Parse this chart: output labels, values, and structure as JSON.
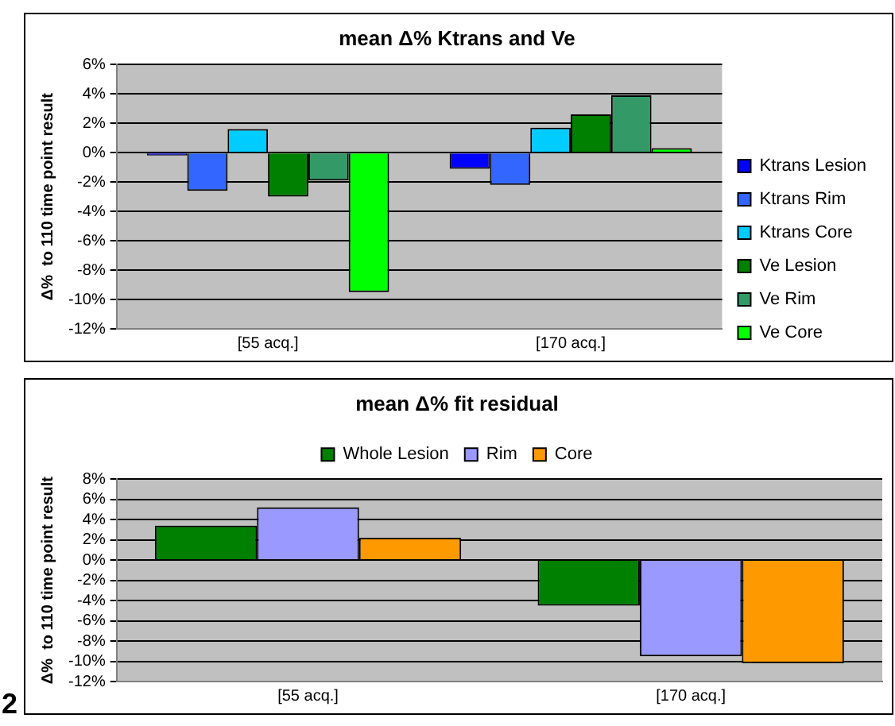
{
  "chart_data": [
    {
      "type": "bar",
      "title": "mean Δ% Ktrans and Ve",
      "ylabel": "Δ%  to 110 time point result",
      "categories": [
        "[55 acq.]",
        "[170 acq.]"
      ],
      "series": [
        {
          "name": "Ktrans Lesion",
          "color": "#0000ff",
          "values": [
            -0.2,
            -1.1
          ]
        },
        {
          "name": "Ktrans Rim",
          "color": "#3366ff",
          "values": [
            -2.6,
            -2.2
          ]
        },
        {
          "name": "Ktrans Core",
          "color": "#00ccff",
          "values": [
            1.6,
            1.7
          ]
        },
        {
          "name": "Ve Lesion",
          "color": "#008000",
          "values": [
            -3.0,
            2.6
          ]
        },
        {
          "name": "Ve Rim",
          "color": "#339966",
          "values": [
            -1.9,
            3.9
          ]
        },
        {
          "name": "Ve Core",
          "color": "#00ff00",
          "values": [
            -9.5,
            0.3
          ]
        }
      ],
      "ylim": [
        -12,
        6
      ],
      "yticks": [
        {
          "value": -12,
          "label": "-12%"
        },
        {
          "value": -10,
          "label": "-10%"
        },
        {
          "value": -8,
          "label": "-8%"
        },
        {
          "value": -6,
          "label": "-6%"
        },
        {
          "value": -4,
          "label": "-4%"
        },
        {
          "value": -2,
          "label": "-2%"
        },
        {
          "value": 0,
          "label": "0%"
        },
        {
          "value": 2,
          "label": "2%"
        },
        {
          "value": 4,
          "label": "4%"
        },
        {
          "value": 6,
          "label": "6%"
        }
      ],
      "grid": "y",
      "legend": "bottom right"
    },
    {
      "type": "bar",
      "title": "mean Δ% fit residual",
      "ylabel": "Δ%  to 110 time point result",
      "categories": [
        "[55 acq.]",
        "[170 acq.]"
      ],
      "series": [
        {
          "name": "Whole Lesion",
          "color": "#008000",
          "values": [
            3.4,
            -4.5
          ]
        },
        {
          "name": "Rim",
          "color": "#9999ff",
          "values": [
            5.2,
            -9.5
          ]
        },
        {
          "name": "Core",
          "color": "#ff9900",
          "values": [
            2.2,
            -10.2
          ]
        }
      ],
      "ylim": [
        -12,
        8
      ],
      "yticks": [
        {
          "value": -12,
          "label": "-12%"
        },
        {
          "value": -10,
          "label": "-10%"
        },
        {
          "value": -8,
          "label": "-8%"
        },
        {
          "value": -6,
          "label": "-6%"
        },
        {
          "value": -4,
          "label": "-4%"
        },
        {
          "value": -2,
          "label": "-2%"
        },
        {
          "value": 0,
          "label": "0%"
        },
        {
          "value": 2,
          "label": "2%"
        },
        {
          "value": 4,
          "label": "4%"
        },
        {
          "value": 6,
          "label": "6%"
        },
        {
          "value": 8,
          "label": "8%"
        }
      ],
      "grid": "y",
      "legend": "top",
      "annotations": [
        "2"
      ]
    }
  ]
}
